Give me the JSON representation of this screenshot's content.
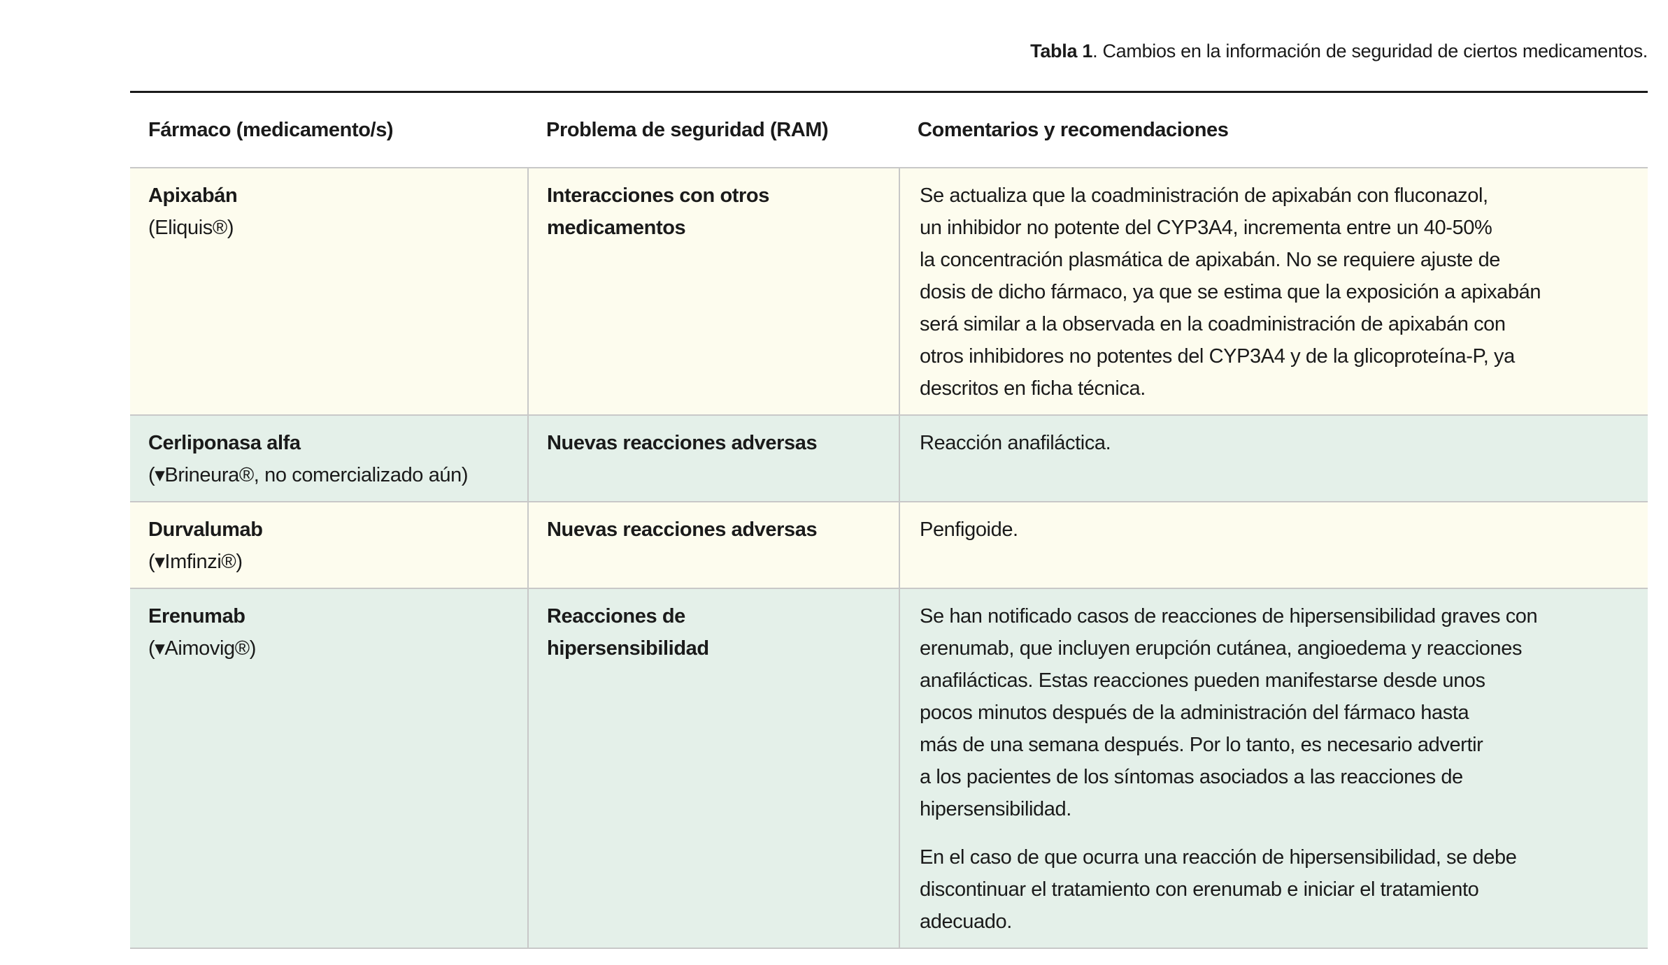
{
  "caption": {
    "label": "Tabla 1",
    "text": ". Cambios en la información de seguridad de ciertos medicamentos."
  },
  "colors": {
    "row_yellow": "#fdfcee",
    "row_green": "#e4f0e9"
  },
  "headers": [
    "Fármaco (medicamento/s)",
    "Problema de seguridad (RAM)",
    "Comentarios y recomendaciones"
  ],
  "rows": [
    {
      "drug": "Apixabán",
      "brand": "(Eliquis®)",
      "problem": [
        "Interacciones con otros",
        "medicamentos"
      ],
      "comments": [
        [
          "Se actualiza que la coadministración de apixabán con fluconazol,",
          "un inhibidor no potente del CYP3A4, incrementa entre un 40-50%",
          "la concentración plasmática de apixabán. No se requiere ajuste de",
          "dosis de dicho fármaco, ya que se estima que la exposición a apixabán",
          "será similar a la observada en la coadministración de apixabán con",
          "otros inhibidores no potentes del CYP3A4 y de la glicoproteína-P, ya",
          "descritos en ficha técnica."
        ]
      ]
    },
    {
      "drug": "Cerliponasa alfa",
      "brand": "(▾Brineura®, no comercializado aún)",
      "problem": [
        "Nuevas reacciones adversas"
      ],
      "comments": [
        [
          "Reacción anafiláctica."
        ]
      ]
    },
    {
      "drug": "Durvalumab",
      "brand": "(▾Imfinzi®)",
      "problem": [
        "Nuevas reacciones adversas"
      ],
      "comments": [
        [
          "Penfigoide."
        ]
      ]
    },
    {
      "drug": "Erenumab",
      "brand": "(▾Aimovig®)",
      "problem": [
        "Reacciones de",
        "hipersensibilidad"
      ],
      "comments": [
        [
          "Se han notificado casos de reacciones de hipersensibilidad graves con",
          "erenumab, que incluyen erupción cutánea, angioedema y reacciones",
          "anafilácticas. Estas reacciones pueden manifestarse desde unos",
          "pocos minutos después de la administración del fármaco hasta",
          "más de una semana después. Por lo tanto, es necesario advertir",
          "a los pacientes de los síntomas asociados a las reacciones de",
          "hipersensibilidad."
        ],
        [
          "En el caso de que ocurra una reacción de hipersensibilidad, se debe",
          "discontinuar el tratamiento con erenumab e iniciar el tratamiento",
          "adecuado."
        ]
      ]
    }
  ]
}
